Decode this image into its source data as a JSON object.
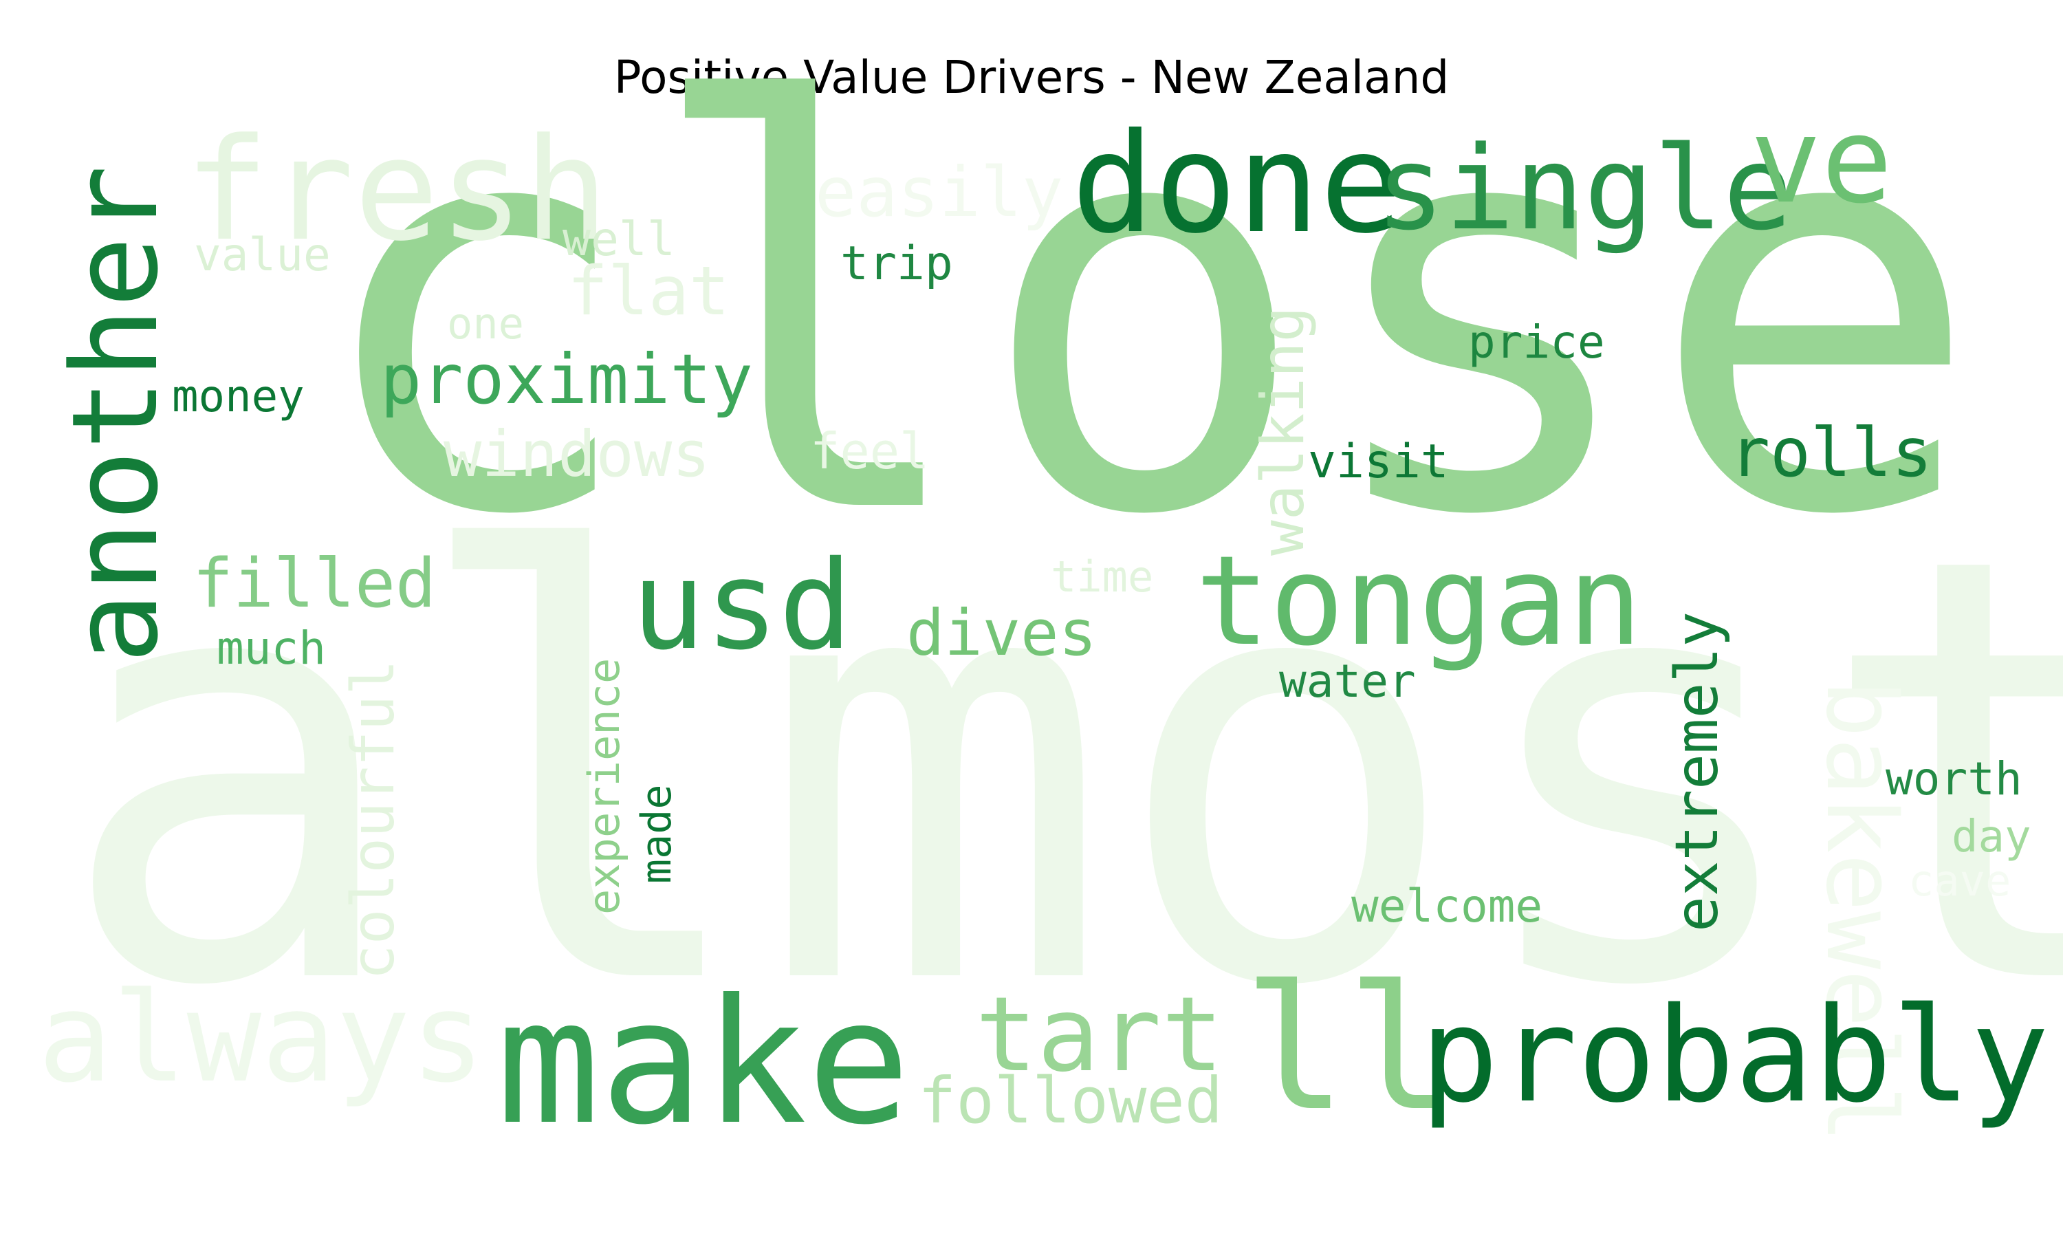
{
  "title": "Positive Value Drivers - New Zealand",
  "palette": "Greens",
  "words": [
    {
      "text": "almost",
      "color": "#edf8ea"
    },
    {
      "text": "close",
      "color": "#98d594"
    },
    {
      "text": "always",
      "color": "#eff9ec"
    },
    {
      "text": "fresh",
      "color": "#e6f5e1"
    },
    {
      "text": "another",
      "color": "#137d39"
    },
    {
      "text": "done",
      "color": "#067230"
    },
    {
      "text": "single",
      "color": "#29924a"
    },
    {
      "text": "ve",
      "color": "#6bc072"
    },
    {
      "text": "easily",
      "color": "#f3faf0"
    },
    {
      "text": "well",
      "color": "#d9f0d3"
    },
    {
      "text": "value",
      "color": "#dbf1d5"
    },
    {
      "text": "trip",
      "color": "#1f8742"
    },
    {
      "text": "flat",
      "color": "#e8f6e3"
    },
    {
      "text": "one",
      "color": "#dcf2d7"
    },
    {
      "text": "price",
      "color": "#1d8640"
    },
    {
      "text": "proximity",
      "color": "#3da75a"
    },
    {
      "text": "walking",
      "color": "#d3eecd"
    },
    {
      "text": "money",
      "color": "#0b7734"
    },
    {
      "text": "windows",
      "color": "#e6f5e1"
    },
    {
      "text": "feel",
      "color": "#e9f7e5"
    },
    {
      "text": "visit",
      "color": "#0c7735"
    },
    {
      "text": "rolls",
      "color": "#137d39"
    },
    {
      "text": "bakewell",
      "color": "#f2faef"
    },
    {
      "text": "filled",
      "color": "#85cc87"
    },
    {
      "text": "time",
      "color": "#e2f4dd"
    },
    {
      "text": "usd",
      "color": "#2f974e"
    },
    {
      "text": "tongan",
      "color": "#60ba6c"
    },
    {
      "text": "dives",
      "color": "#74c476"
    },
    {
      "text": "much",
      "color": "#4eb264"
    },
    {
      "text": "extremely",
      "color": "#137d39"
    },
    {
      "text": "water",
      "color": "#218944"
    },
    {
      "text": "colourful",
      "color": "#e3f4de"
    },
    {
      "text": "experience",
      "color": "#8ed08b"
    },
    {
      "text": "made",
      "color": "#0a7633"
    },
    {
      "text": "worth",
      "color": "#238b45"
    },
    {
      "text": "day",
      "color": "#a3da9d"
    },
    {
      "text": "cave",
      "color": "#f5fbf3"
    },
    {
      "text": "welcome",
      "color": "#6bc072"
    },
    {
      "text": "make",
      "color": "#37a055"
    },
    {
      "text": "tart",
      "color": "#99d595"
    },
    {
      "text": "ll",
      "color": "#8dd08a"
    },
    {
      "text": "probably",
      "color": "#036c2b"
    },
    {
      "text": "followed",
      "color": "#bbe4b4"
    }
  ]
}
